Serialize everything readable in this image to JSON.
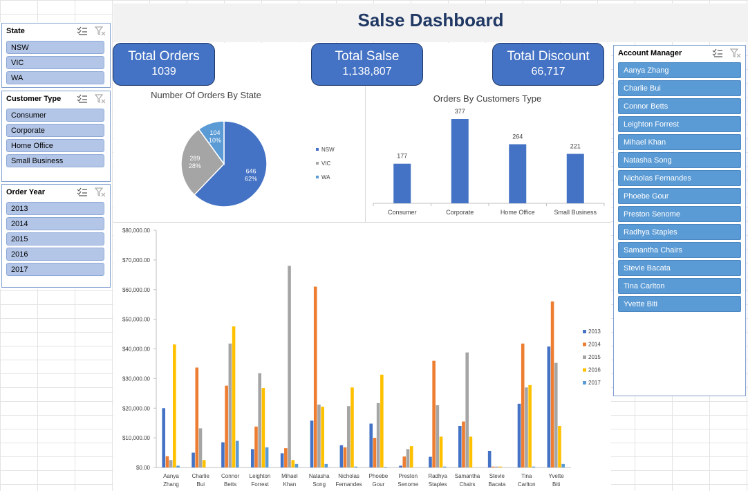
{
  "dashboard": {
    "title": "Salse Dashboard"
  },
  "kpis": [
    {
      "label": "Total Orders",
      "value": "1039"
    },
    {
      "label": "Total Salse",
      "value": "1,138,807"
    },
    {
      "label": "Total Discount",
      "value": "66,717"
    }
  ],
  "slicers": {
    "state": {
      "title": "State",
      "items": [
        "NSW",
        "VIC",
        "WA"
      ]
    },
    "customer_type": {
      "title": "Customer Type",
      "items": [
        "Consumer",
        "Corporate",
        "Home Office",
        "Small Business"
      ]
    },
    "order_year": {
      "title": "Order Year",
      "items": [
        "2013",
        "2014",
        "2015",
        "2016",
        "2017"
      ]
    },
    "account_manager": {
      "title": "Account Manager",
      "items": [
        "Aanya Zhang",
        "Charlie Bui",
        "Connor Betts",
        "Leighton Forrest",
        "Mihael Khan",
        "Natasha Song",
        "Nicholas Fernandes",
        "Phoebe Gour",
        "Preston Senome",
        "Radhya Staples",
        "Samantha Chairs",
        "Stevie Bacata",
        "Tina Carlton",
        "Yvette Biti"
      ]
    }
  },
  "icons": {
    "multi_select": "multi-select-icon",
    "clear_filter": "clear-filter-icon"
  },
  "chart_data": [
    {
      "type": "pie",
      "title": "Number Of Orders By State",
      "categories": [
        "NSW",
        "VIC",
        "WA"
      ],
      "values": [
        646,
        289,
        104
      ],
      "percent_labels": [
        "62%",
        "28%",
        "10%"
      ],
      "colors": [
        "#4472c4",
        "#a5a5a5",
        "#5b9bd5"
      ],
      "legend": "right"
    },
    {
      "type": "bar",
      "title": "Orders By Customers Type",
      "categories": [
        "Consumer",
        "Corporate",
        "Home Office",
        "Small Business"
      ],
      "values": [
        177,
        377,
        264,
        221
      ],
      "ylim": [
        0,
        377
      ],
      "color": "#4472c4"
    },
    {
      "type": "bar",
      "title": "",
      "categories": [
        "Aanya Zhang",
        "Charlie Bui",
        "Connor Betts",
        "Leighton Forrest",
        "Mihael Khan",
        "Natasha Song",
        "Nicholas Fernandes",
        "Phoebe Gour",
        "Preston Senome",
        "Radhya Staples",
        "Samantha Chairs",
        "Stevie Bacata",
        "Tina Carlton",
        "Yvette Biti"
      ],
      "ylim": [
        0,
        80000
      ],
      "yticks": [
        "$0.00",
        "$10,000.00",
        "$20,000.00",
        "$30,000.00",
        "$40,000.00",
        "$50,000.00",
        "$60,000.00",
        "$70,000.00",
        "$80,000.00"
      ],
      "legend": "right",
      "series": [
        {
          "name": "2013",
          "color": "#4472c4",
          "values": [
            20000,
            5000,
            8500,
            6200,
            4800,
            15800,
            7500,
            14800,
            600,
            3600,
            14000,
            5600,
            21500,
            40800
          ]
        },
        {
          "name": "2014",
          "color": "#ed7d31",
          "values": [
            3800,
            33700,
            27600,
            13800,
            6500,
            61000,
            6800,
            10000,
            3700,
            36000,
            15500,
            300,
            41800,
            56000
          ]
        },
        {
          "name": "2015",
          "color": "#a5a5a5",
          "values": [
            2500,
            13200,
            41800,
            31800,
            68000,
            21200,
            20700,
            21700,
            6200,
            21000,
            38800,
            300,
            27000,
            35300
          ]
        },
        {
          "name": "2016",
          "color": "#ffc000",
          "values": [
            41500,
            2500,
            47600,
            26800,
            2500,
            20500,
            27000,
            31300,
            7200,
            10400,
            10400,
            300,
            27800,
            14000
          ]
        },
        {
          "name": "2017",
          "color": "#5b9bd5",
          "values": [
            600,
            0,
            9000,
            6800,
            1200,
            1200,
            300,
            200,
            0,
            300,
            0,
            0,
            300,
            1200
          ]
        }
      ]
    }
  ]
}
